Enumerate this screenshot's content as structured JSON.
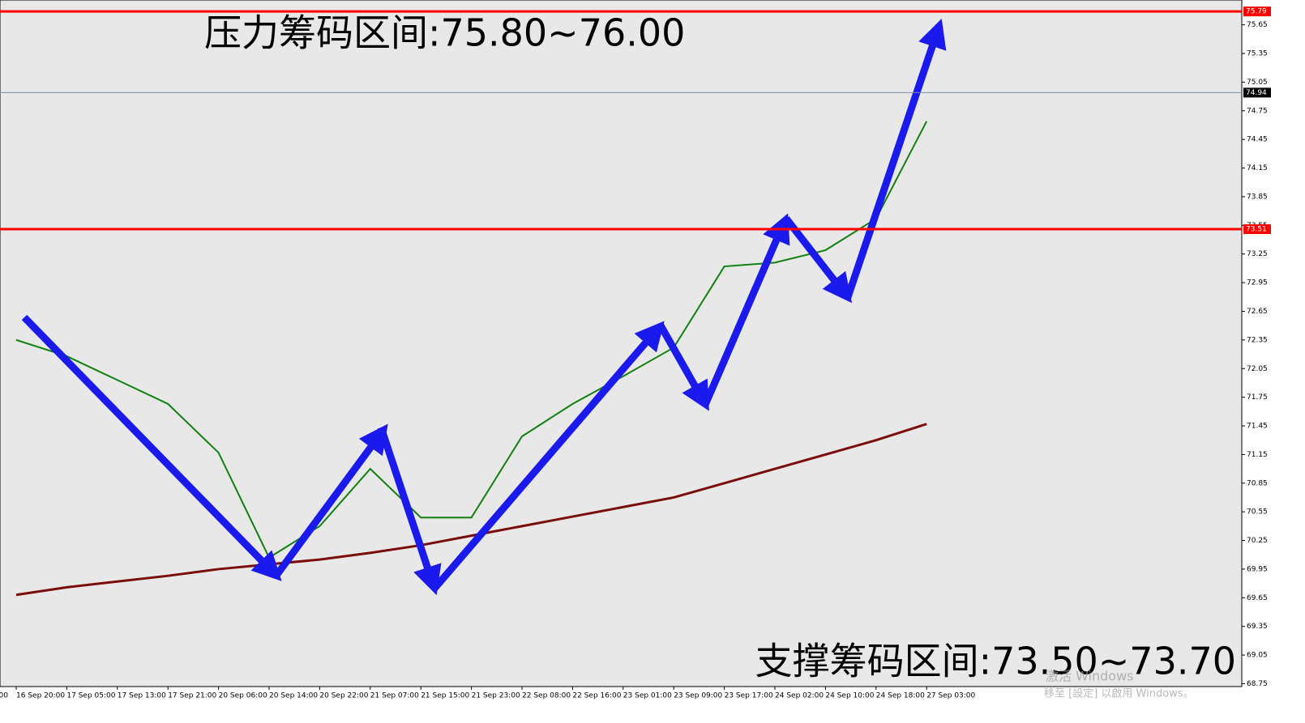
{
  "chart_data": {
    "type": "line",
    "annotations": [
      "压力筹码区间:75.80~76.00",
      "支撑筹码区间:73.50~73.70"
    ],
    "watermark": [
      "激活 Windows",
      "移至 [設定] 以啟用 Windows。"
    ],
    "categories": [
      "00",
      "16 Sep 20:00",
      "17 Sep 05:00",
      "17 Sep 13:00",
      "17 Sep 21:00",
      "20 Sep 06:00",
      "20 Sep 14:00",
      "20 Sep 22:00",
      "21 Sep 07:00",
      "21 Sep 15:00",
      "21 Sep 23:00",
      "22 Sep 08:00",
      "22 Sep 16:00",
      "23 Sep 01:00",
      "23 Sep 09:00",
      "23 Sep 17:00",
      "24 Sep 02:00",
      "24 Sep 10:00",
      "24 Sep 18:00",
      "27 Sep 03:00"
    ],
    "series": [
      {
        "color": "#108010",
        "values": [
          null,
          72.35,
          72.18,
          71.93,
          71.68,
          71.17,
          70.07,
          70.4,
          71.0,
          70.49,
          70.49,
          71.34,
          71.68,
          71.97,
          72.27,
          73.12,
          73.16,
          73.29,
          73.62,
          74.64
        ]
      },
      {
        "color": "#7a0c0c",
        "values": [
          null,
          69.68,
          69.76,
          69.82,
          69.88,
          69.95,
          70.0,
          70.05,
          70.12,
          70.2,
          70.3,
          70.4,
          70.5,
          70.6,
          70.7,
          70.85,
          71.0,
          71.15,
          71.3,
          71.47
        ]
      }
    ],
    "hlines": [
      75.79,
      73.51
    ],
    "hline_color": "#ff0000",
    "current_price": 74.94,
    "ylim": [
      68.72,
      75.91
    ],
    "yticks": [
      75.65,
      75.35,
      75.05,
      74.75,
      74.45,
      74.15,
      73.85,
      73.55,
      73.25,
      72.95,
      72.65,
      72.35,
      72.05,
      71.75,
      71.45,
      71.15,
      70.85,
      70.55,
      70.25,
      69.95,
      69.65,
      69.35,
      69.05,
      68.75
    ]
  }
}
